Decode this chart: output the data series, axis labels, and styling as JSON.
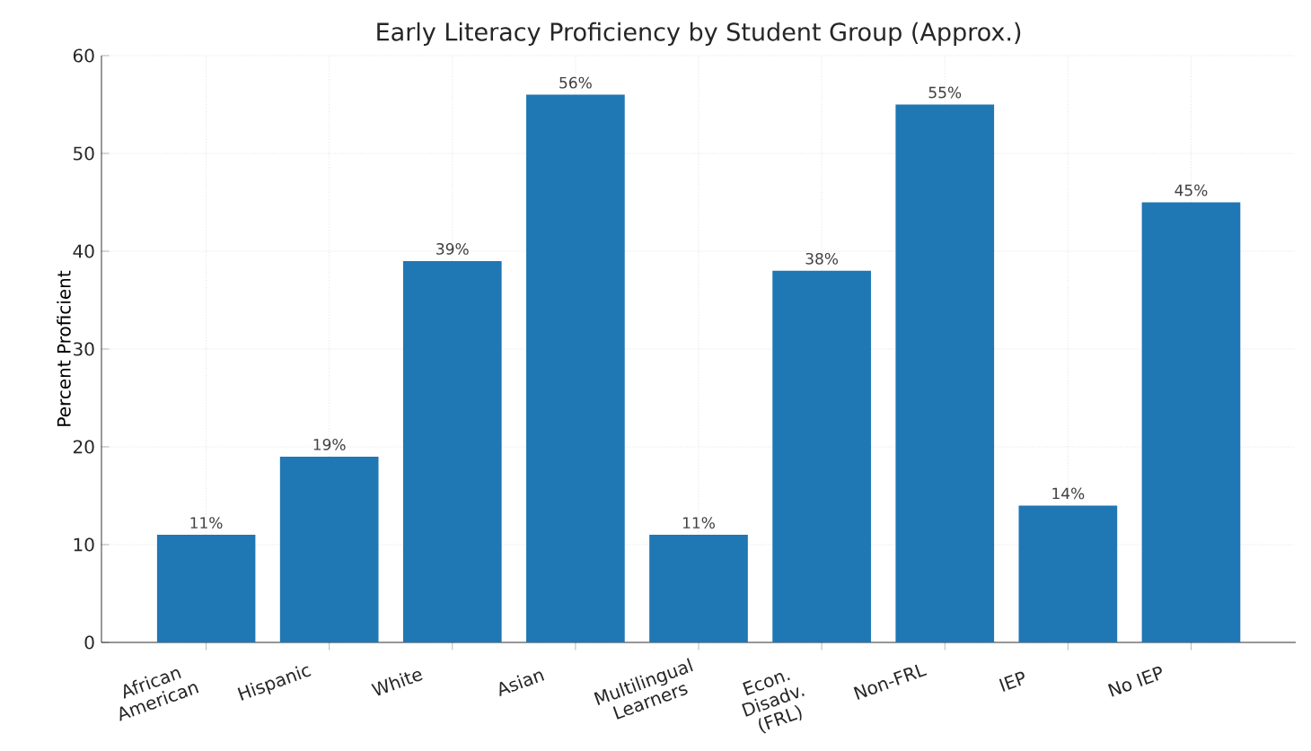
{
  "chart_data": {
    "type": "bar",
    "title": "Early Literacy Proficiency by Student Group (Approx.)",
    "ylabel": "Percent Proficient",
    "categories": [
      "African American",
      "Hispanic",
      "White",
      "Asian",
      "Multilingual Learners",
      "Econ. Disadv. (FRL)",
      "Non-FRL",
      "IEP",
      "No IEP"
    ],
    "values": [
      11,
      19,
      39,
      56,
      11,
      38,
      55,
      14,
      45
    ],
    "value_labels": [
      "11%",
      "19%",
      "39%",
      "56%",
      "11%",
      "38%",
      "55%",
      "14%",
      "45%"
    ],
    "color": "#1f77b4",
    "ylim": [
      0,
      60
    ],
    "yticks": [
      0,
      10,
      20,
      30,
      40,
      50,
      60
    ],
    "grid": true
  }
}
